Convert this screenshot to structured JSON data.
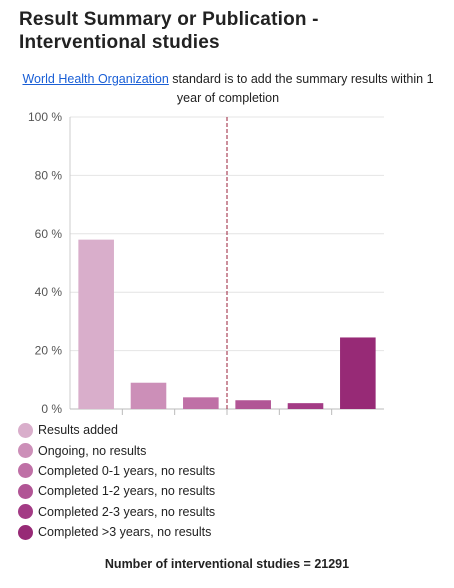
{
  "title": "Result Summary or Publication - Interventional studies",
  "subtitle": {
    "link_text": "World Health Organization",
    "text": " standard is to add the summary results within 1 year of completion"
  },
  "chart_data": {
    "type": "bar",
    "categories": [
      "Results added",
      "Ongoing, no results",
      "Completed 0-1 years, no results",
      "Completed 1-2 years, no results",
      "Completed 2-3 years, no results",
      "Completed >3 years, no results"
    ],
    "values": [
      58,
      9,
      4,
      3,
      2,
      24.5
    ],
    "colors": [
      "#d9aecb",
      "#cc8fb8",
      "#bf70a6",
      "#b15595",
      "#a33b85",
      "#972a76"
    ],
    "y_ticks": [
      "0 %",
      "20 %",
      "40 %",
      "60 %",
      "80 %",
      "100 %"
    ],
    "ylim": [
      0,
      100
    ],
    "reference_line_after_category": 3,
    "reference_line_color": "#9a1f3a",
    "grid": true,
    "legend_position": "bottom-left"
  },
  "footer": "Number of interventional studies = 21291"
}
